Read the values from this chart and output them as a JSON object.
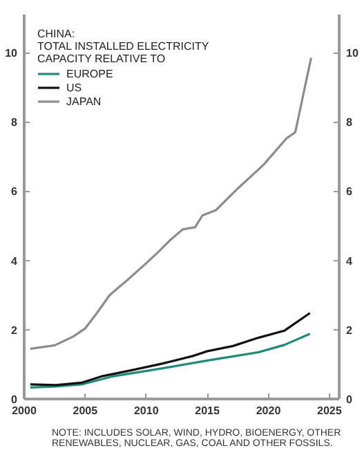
{
  "chart_data": {
    "type": "line",
    "legend_title": "CHINA:\nTOTAL INSTALLED ELECTRICITY\nCAPACITY RELATIVE TO",
    "legend": "top left",
    "grid": false,
    "xlim": [
      2000,
      2025.8
    ],
    "xticks": [
      2000,
      2005,
      2010,
      2015,
      2020,
      2025
    ],
    "ylim": [
      0,
      11.1
    ],
    "yticks": [
      0,
      2,
      4,
      6,
      8,
      10
    ],
    "y2lim": [
      0,
      11.1
    ],
    "y2ticks": [
      0,
      2,
      4,
      6,
      8,
      10
    ],
    "series": [
      {
        "name": "EUROPE",
        "color": "#1e8a78",
        "x": [
          2000.5,
          2002.6,
          2004.7,
          2007.2,
          2010.9,
          2015,
          2019.2,
          2021.3,
          2023.4
        ],
        "values": [
          0.33,
          0.36,
          0.42,
          0.65,
          0.86,
          1.11,
          1.35,
          1.56,
          1.88
        ]
      },
      {
        "name": "US",
        "color": "#111111",
        "x": [
          2000.5,
          2002.6,
          2004.7,
          2006.3,
          2008.8,
          2011.3,
          2013.8,
          2015,
          2017.1,
          2019.2,
          2021.3,
          2023.4
        ],
        "values": [
          0.42,
          0.4,
          0.47,
          0.65,
          0.83,
          1.02,
          1.24,
          1.38,
          1.53,
          1.77,
          1.97,
          2.48
        ]
      },
      {
        "name": "JAPAN",
        "color": "#8c8c8c",
        "x": [
          2000.5,
          2002.5,
          2004,
          2005,
          2006,
          2007,
          2008.5,
          2010,
          2011,
          2012,
          2013,
          2014,
          2014.6,
          2015.7,
          2017.5,
          2019.6,
          2021.5,
          2022.2,
          2023.5
        ],
        "values": [
          1.45,
          1.55,
          1.8,
          2.04,
          2.5,
          3.0,
          3.45,
          3.92,
          4.25,
          4.6,
          4.9,
          4.96,
          5.3,
          5.45,
          6.08,
          6.76,
          7.53,
          7.7,
          9.85
        ]
      }
    ],
    "annotations": [
      "NOTE: INCLUDES SOLAR, WIND, HYDRO, BIOENERGY, OTHER\nRENEWABLES, NUCLEAR, GAS, COAL AND OTHER FOSSILS."
    ]
  }
}
